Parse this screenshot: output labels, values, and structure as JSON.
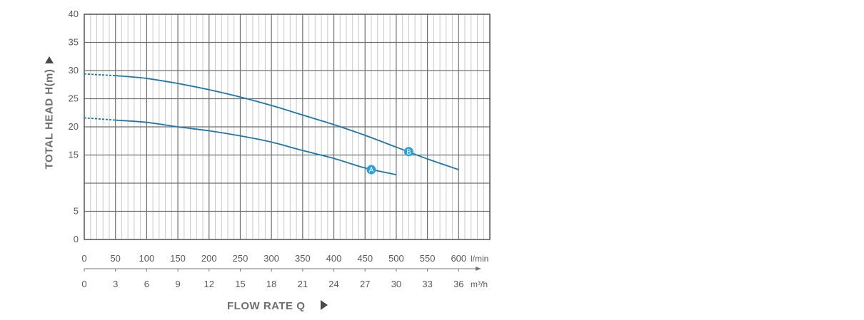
{
  "chart_data": {
    "type": "line",
    "ylabel": "TOTAL HEAD H(m)",
    "xlabel": "FLOW RATE Q",
    "ylim": [
      0,
      40
    ],
    "y_ticks": [
      "0",
      "5",
      "15",
      "20",
      "25",
      "30",
      "35",
      "40"
    ],
    "y_tick_values": [
      0,
      5,
      15,
      20,
      25,
      30,
      35,
      40
    ],
    "x_primary": {
      "unit": "l/min",
      "range": [
        0,
        650
      ],
      "ticks": [
        "0",
        "50",
        "100",
        "150",
        "200",
        "250",
        "300",
        "350",
        "400",
        "450",
        "500",
        "550",
        "600"
      ],
      "tick_values": [
        0,
        50,
        100,
        150,
        200,
        250,
        300,
        350,
        400,
        450,
        500,
        550,
        600
      ]
    },
    "x_secondary": {
      "unit": "m³/h",
      "ticks": [
        "0",
        "3",
        "6",
        "9",
        "12",
        "15",
        "18",
        "21",
        "24",
        "27",
        "30",
        "33",
        "36"
      ]
    },
    "grid": true,
    "series": [
      {
        "name": "A",
        "x": [
          0,
          50,
          100,
          150,
          200,
          250,
          300,
          350,
          400,
          450,
          500
        ],
        "y": [
          21.6,
          21.2,
          20.8,
          20.0,
          19.3,
          18.4,
          17.3,
          15.8,
          14.4,
          12.7,
          11.5
        ],
        "dashed_until_x": 50,
        "marker_x": 460,
        "marker_y": 12.4
      },
      {
        "name": "B",
        "x": [
          0,
          50,
          100,
          150,
          200,
          250,
          300,
          350,
          400,
          450,
          500,
          550,
          600
        ],
        "y": [
          29.4,
          29.1,
          28.6,
          27.7,
          26.6,
          25.3,
          23.8,
          22.1,
          20.4,
          18.5,
          16.4,
          14.3,
          12.4
        ],
        "dashed_until_x": 50,
        "marker_x": 520,
        "marker_y": 15.6
      }
    ],
    "colors": {
      "line": "#1f77a8",
      "marker": "#29a3dc",
      "grid_major": "#6f6f6f",
      "grid_minor": "#c9c9c9"
    }
  }
}
